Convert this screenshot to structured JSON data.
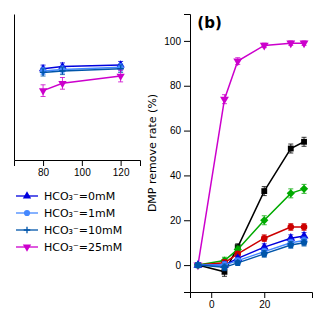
{
  "chart_data": [
    {
      "type": "line",
      "xlim": [
        65,
        130
      ],
      "ylim": [
        88,
        108
      ],
      "xticks": [
        80,
        100,
        120
      ],
      "tick_labels": "x",
      "legend": "bottom",
      "series": [
        {
          "name": "HCO₃⁻=0mM",
          "color": "#0000dd",
          "marker": "triangle-up",
          "x": [
            80,
            90,
            120
          ],
          "values": [
            100.5,
            100.8,
            101.0
          ],
          "yerr": [
            0.5,
            0.5,
            0.5
          ]
        },
        {
          "name": "HCO₃⁻=1mM",
          "color": "#4488ff",
          "marker": "circle",
          "x": [
            80,
            90,
            120
          ],
          "values": [
            100.2,
            100.4,
            100.7
          ],
          "yerr": [
            0.5,
            0.5,
            0.5
          ]
        },
        {
          "name": "HCO₃⁻=10mM",
          "color": "#0055aa",
          "marker": "plus",
          "x": [
            80,
            90,
            120
          ],
          "values": [
            100.0,
            100.2,
            100.5
          ],
          "yerr": [
            0.5,
            0.5,
            0.5
          ]
        },
        {
          "name": "HCO₃⁻=25mM",
          "color": "#cc00cc",
          "marker": "triangle-down",
          "x": [
            80,
            90,
            120
          ],
          "values": [
            97.5,
            98.5,
            99.5
          ],
          "yerr": [
            0.8,
            0.8,
            0.8
          ]
        }
      ]
    },
    {
      "type": "line",
      "title": "(b)",
      "ylabel": "DMP remove rate (%)",
      "xlim": [
        -8,
        38
      ],
      "ylim": [
        -12,
        112
      ],
      "xticks": [
        0,
        20
      ],
      "yticks": [
        0,
        20,
        40,
        60,
        80,
        100
      ],
      "series": [
        {
          "color": "#cc00cc",
          "marker": "triangle-down",
          "x": [
            -5,
            5,
            10,
            20,
            30,
            35
          ],
          "values": [
            0,
            74,
            91,
            98,
            99,
            99
          ],
          "yerr": [
            1,
            2,
            1.5,
            1,
            1,
            1
          ]
        },
        {
          "color": "#000000",
          "marker": "square",
          "x": [
            -5,
            5,
            10,
            20,
            30,
            35
          ],
          "values": [
            0,
            -3,
            8,
            33,
            52,
            55
          ],
          "yerr": [
            1,
            2,
            1.5,
            2,
            2,
            2
          ]
        },
        {
          "color": "#00aa00",
          "marker": "diamond",
          "x": [
            -5,
            5,
            10,
            20,
            30,
            35
          ],
          "values": [
            0,
            2,
            7,
            20,
            32,
            34
          ],
          "yerr": [
            1,
            1.5,
            1.5,
            2,
            2,
            2
          ]
        },
        {
          "color": "#cc0000",
          "marker": "circle",
          "x": [
            -5,
            5,
            10,
            20,
            30,
            35
          ],
          "values": [
            0,
            1,
            5,
            12,
            17,
            17
          ],
          "yerr": [
            1,
            1.5,
            1,
            1.5,
            1.5,
            1.5
          ]
        },
        {
          "color": "#0000dd",
          "marker": "triangle-up",
          "x": [
            -5,
            5,
            10,
            20,
            30,
            35
          ],
          "values": [
            0,
            0,
            3,
            8,
            12,
            13
          ],
          "yerr": [
            1,
            1.5,
            1,
            1.5,
            1.5,
            1.5
          ]
        },
        {
          "color": "#4488ff",
          "marker": "circle",
          "x": [
            -5,
            5,
            10,
            20,
            30,
            35
          ],
          "values": [
            0,
            0,
            2,
            6,
            10,
            11
          ],
          "yerr": [
            1,
            1.5,
            1,
            1.5,
            1.5,
            1.5
          ]
        },
        {
          "color": "#0055aa",
          "marker": "pentagon",
          "x": [
            -5,
            5,
            10,
            20,
            30,
            35
          ],
          "values": [
            0,
            -1,
            1,
            5,
            9,
            10
          ],
          "yerr": [
            1,
            1.5,
            1,
            1.5,
            1.5,
            1.5
          ]
        }
      ]
    }
  ]
}
